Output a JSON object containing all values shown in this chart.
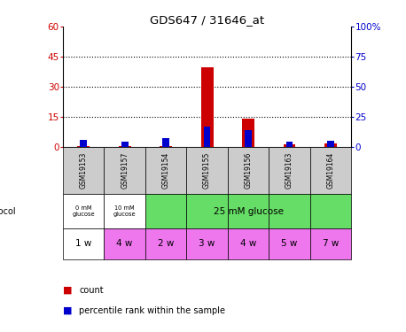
{
  "title": "GDS647 / 31646_at",
  "samples": [
    "GSM19153",
    "GSM19157",
    "GSM19154",
    "GSM19155",
    "GSM19156",
    "GSM19163",
    "GSM19164"
  ],
  "count_values": [
    0.5,
    0.5,
    0.5,
    40.0,
    14.5,
    1.5,
    2.0
  ],
  "percentile_values": [
    6.0,
    4.5,
    7.5,
    17.0,
    14.5,
    4.5,
    5.5
  ],
  "left_ylim": [
    0,
    60
  ],
  "right_ylim": [
    0,
    100
  ],
  "left_yticks": [
    0,
    15,
    30,
    45,
    60
  ],
  "right_yticks": [
    0,
    25,
    50,
    75,
    100
  ],
  "left_yticklabels": [
    "0",
    "15",
    "30",
    "45",
    "60"
  ],
  "right_yticklabels": [
    "0",
    "25",
    "50",
    "75",
    "100%"
  ],
  "time_labels": [
    "1 w",
    "4 w",
    "2 w",
    "3 w",
    "4 w",
    "5 w",
    "7 w"
  ],
  "bar_color_count": "#cc0000",
  "bar_color_pct": "#0000cc",
  "bar_width": 0.3,
  "dotted_grid_lines": [
    15,
    30,
    45
  ],
  "bg_color": "#ffffff",
  "axis_label_color_left": "#cc0000",
  "axis_label_color_right": "#0000cc",
  "sample_box_color": "#cccccc",
  "green_color": "#66dd66",
  "pink_color": "#ee77ee",
  "white_color": "#ffffff"
}
